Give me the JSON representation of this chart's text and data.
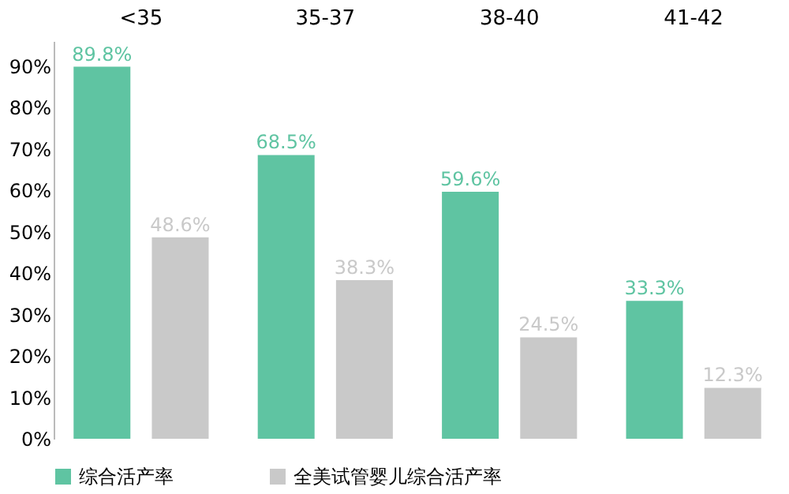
{
  "chart_data": {
    "type": "bar",
    "categories": [
      "<35",
      "35-37",
      "38-40",
      "41-42"
    ],
    "series": [
      {
        "name": "综合活产率",
        "color": "#5fc4a2",
        "values": [
          89.8,
          68.5,
          59.6,
          33.3
        ],
        "value_labels": [
          "89.8%",
          "68.5%",
          "59.6%",
          "33.3%"
        ]
      },
      {
        "name": "全美试管婴儿综合活产率",
        "color": "#c9c9c9",
        "values": [
          48.6,
          38.3,
          24.5,
          12.3
        ],
        "value_labels": [
          "48.6%",
          "38.3%",
          "24.5%",
          "12.3%"
        ]
      }
    ],
    "ylim": [
      0,
      96
    ],
    "yticks": [
      {
        "value": 0,
        "label": "0%"
      },
      {
        "value": 10,
        "label": "10%"
      },
      {
        "value": 20,
        "label": "20%"
      },
      {
        "value": 30,
        "label": "30%"
      },
      {
        "value": 40,
        "label": "40%"
      },
      {
        "value": 50,
        "label": "50%"
      },
      {
        "value": 60,
        "label": "60%"
      },
      {
        "value": 70,
        "label": "70%"
      },
      {
        "value": 80,
        "label": "80%"
      },
      {
        "value": 90,
        "label": "90%"
      }
    ],
    "grid": false,
    "legend": "bottom"
  }
}
